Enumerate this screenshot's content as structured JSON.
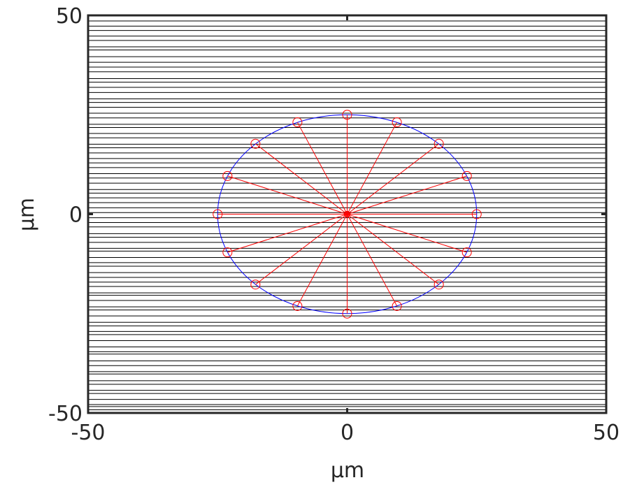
{
  "chart_data": {
    "type": "spoke",
    "xlabel": "μm",
    "ylabel": "μm",
    "xlim": [
      -50,
      50
    ],
    "ylim": [
      -50,
      50
    ],
    "xticks": [
      -50,
      0,
      50
    ],
    "yticks": [
      -50,
      0,
      50
    ],
    "layers": {
      "color": "#000000",
      "y": [
        -49.2,
        -48.4,
        -47.9,
        -46.6,
        -45.1,
        -44.3,
        -42.8,
        -41.9,
        -40.2,
        -39.6,
        -38.1,
        -36.9,
        -35.2,
        -34.6,
        -33.4,
        -31.8,
        -30.3,
        -29.5,
        -28.1,
        -27.2,
        -25.6,
        -24.1,
        -23.3,
        -21.7,
        -20.4,
        -19.8,
        -18.2,
        -17.1,
        -15.9,
        -14.7,
        -13.1,
        -12.2,
        -10.9,
        -9.3,
        -8.6,
        -7.1,
        -5.8,
        -4.9,
        -3.2,
        -2.1,
        -0.9,
        0.4,
        1.6,
        2.9,
        4.1,
        5.3,
        6.2,
        7.8,
        9.1,
        10.2,
        11.7,
        12.9,
        14.0,
        15.4,
        16.7,
        17.6,
        19.2,
        20.3,
        21.8,
        22.6,
        24.2,
        25.4,
        26.9,
        28.1,
        29.0,
        30.6,
        31.9,
        33.2,
        34.1,
        35.8,
        37.0,
        38.2,
        39.6,
        41.3,
        42.1,
        43.7,
        44.8,
        46.2,
        47.3,
        48.6
      ]
    },
    "circle": {
      "color": "#0000ff",
      "center": [
        0,
        0
      ],
      "radius": 25
    },
    "points": {
      "color": "#ff0000",
      "origin": [
        0,
        0
      ],
      "x": [
        25,
        23.1,
        17.7,
        9.6,
        0,
        -9.6,
        -17.7,
        -23.1,
        -25,
        -23.1,
        -17.7,
        -9.6,
        0,
        9.6,
        17.7,
        23.1
      ],
      "y": [
        0,
        9.6,
        17.7,
        23.1,
        25,
        23.1,
        17.7,
        9.6,
        0,
        -9.6,
        -17.7,
        -23.1,
        -25,
        -23.1,
        -17.7,
        -9.6
      ]
    }
  }
}
